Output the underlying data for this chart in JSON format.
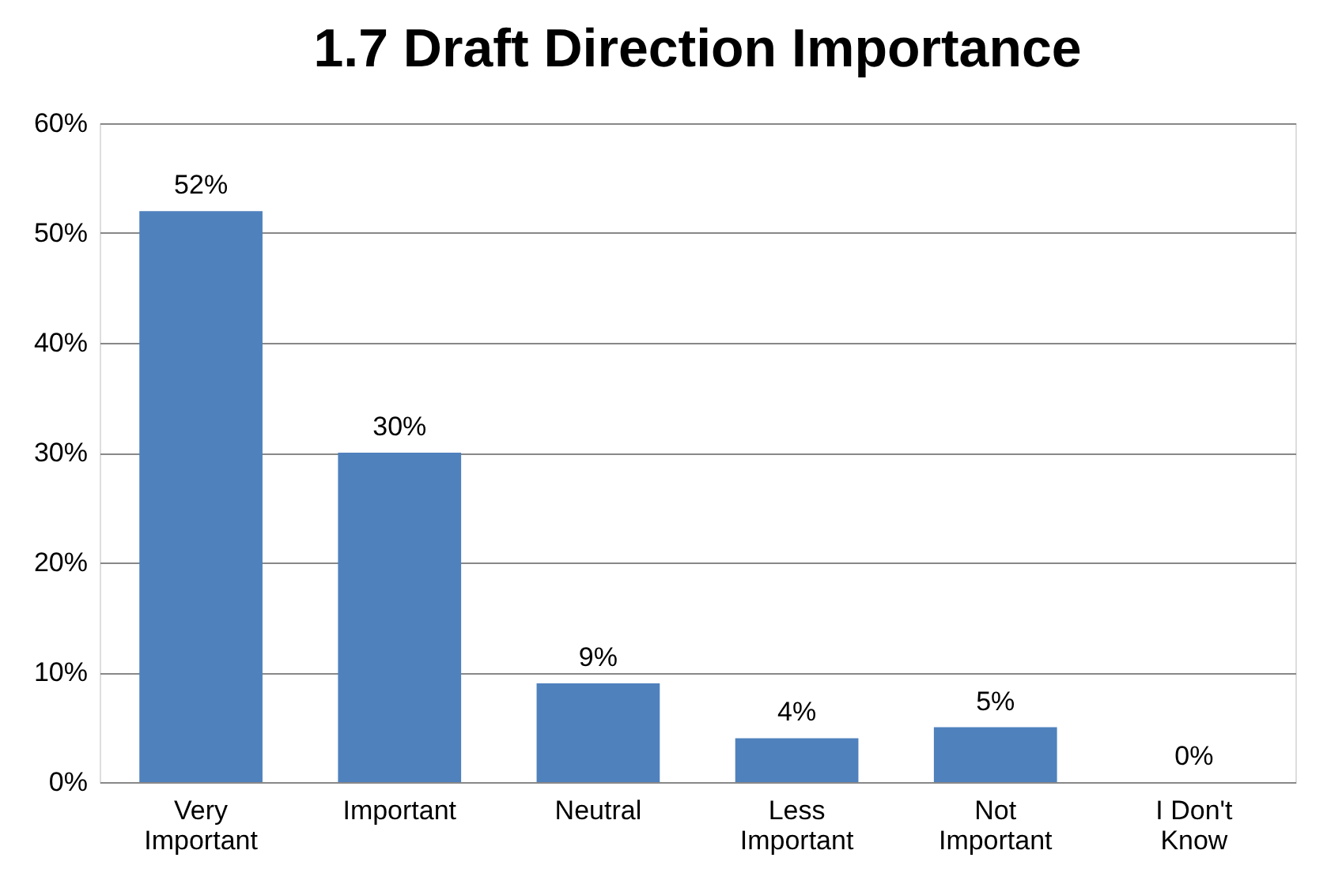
{
  "chart_data": {
    "type": "bar",
    "title": "1.7 Draft Direction Importance",
    "categories": [
      "Very Important",
      "Important",
      "Neutral",
      "Less Important",
      "Not Important",
      "I Don't Know"
    ],
    "values": [
      52,
      30,
      9,
      4,
      5,
      0
    ],
    "value_labels": [
      "52%",
      "30%",
      "9%",
      "4%",
      "5%",
      "0%"
    ],
    "color": "#4f81bd",
    "ylim": [
      0,
      60
    ],
    "yticks": [
      {
        "value": 0,
        "label": "0%"
      },
      {
        "value": 10,
        "label": "10%"
      },
      {
        "value": 20,
        "label": "20%"
      },
      {
        "value": 30,
        "label": "30%"
      },
      {
        "value": 40,
        "label": "40%"
      },
      {
        "value": 50,
        "label": "50%"
      },
      {
        "value": 60,
        "label": "60%"
      }
    ],
    "grid": "y"
  }
}
